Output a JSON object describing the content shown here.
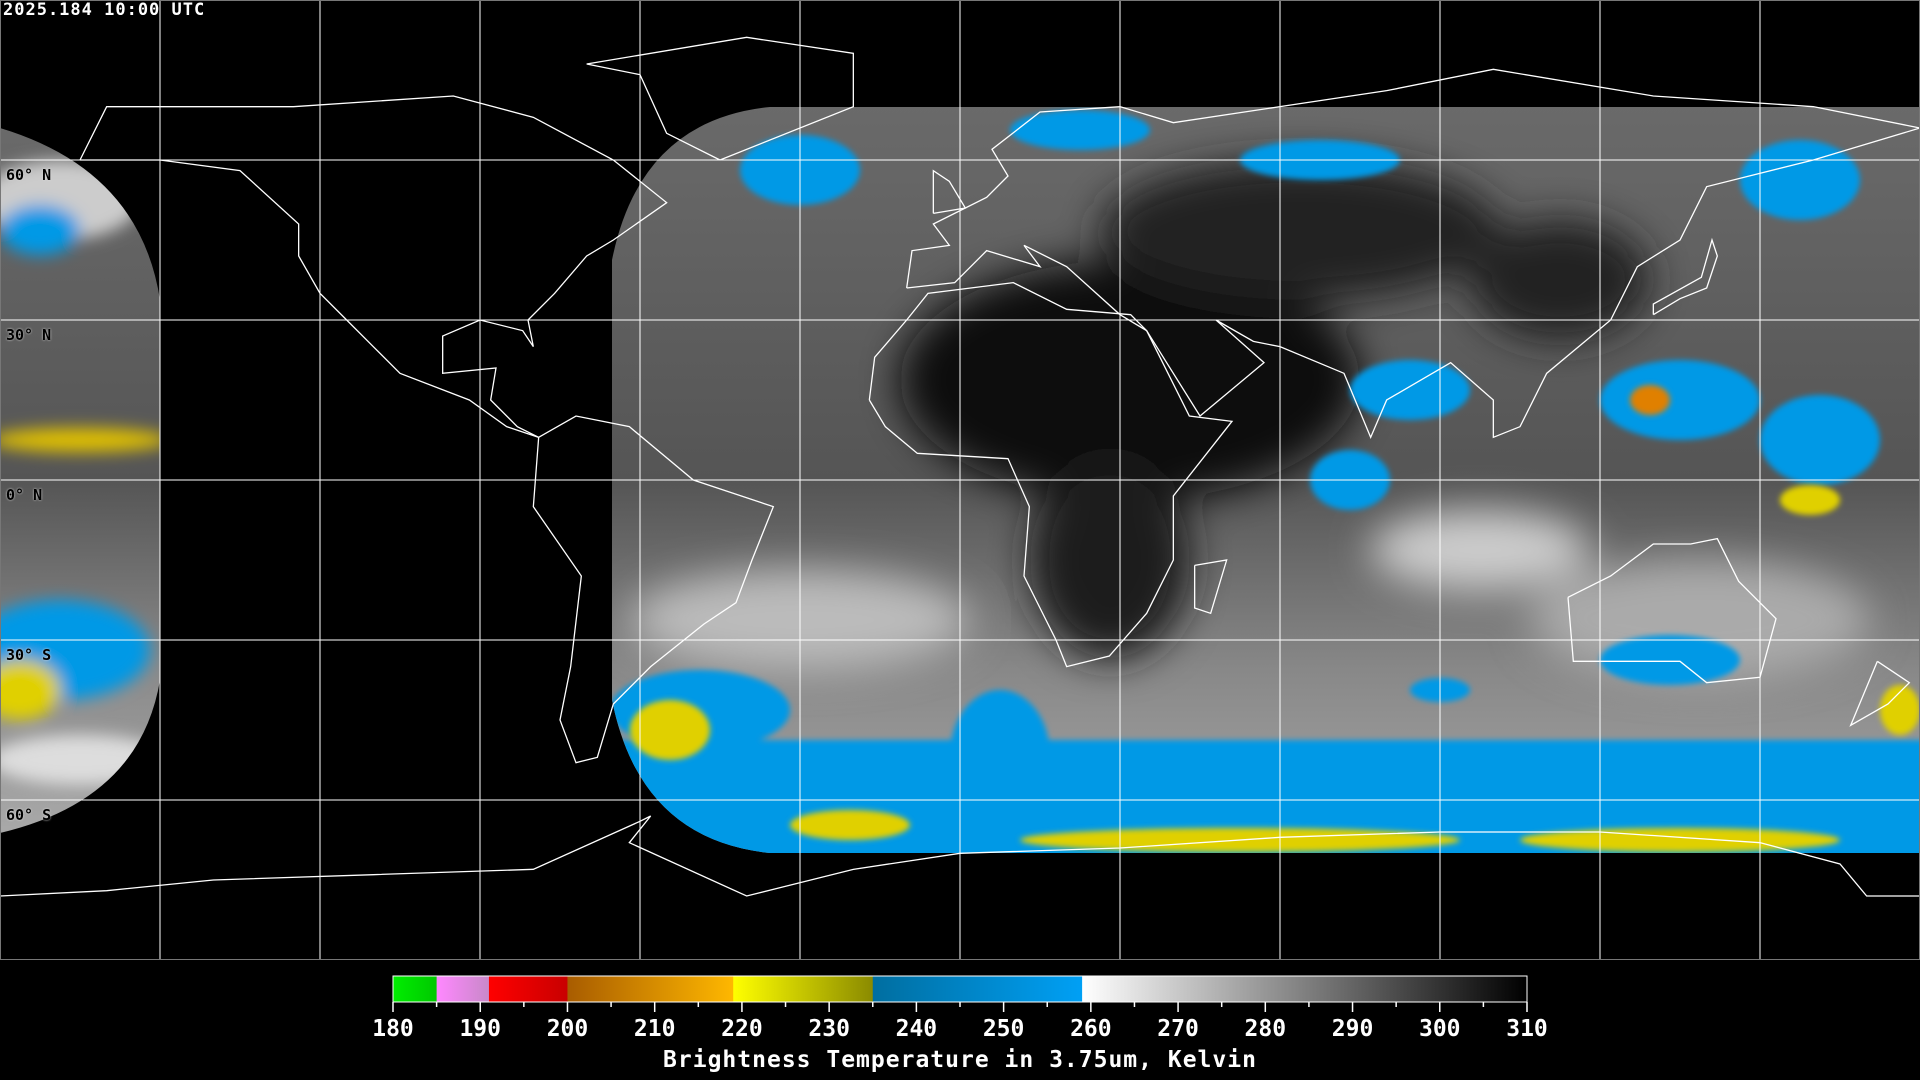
{
  "timestamp": "2025.184 10:00 UTC",
  "lat_labels": [
    "60° N",
    "30° N",
    "0° N",
    "30° S",
    "60° S"
  ],
  "lat_values": [
    60,
    30,
    0,
    -30,
    -60
  ],
  "grid": {
    "lon_step_deg": 30,
    "lat_step_deg": 30,
    "projection": "equirectangular",
    "line_color": "#ffffff"
  },
  "colorbar": {
    "title": "Brightness Temperature in 3.75um, Kelvin",
    "min": 180,
    "max": 310,
    "tick_labels": [
      "180",
      "190",
      "200",
      "210",
      "220",
      "230",
      "240",
      "250",
      "260",
      "270",
      "280",
      "290",
      "300",
      "310"
    ],
    "segments": [
      {
        "from": 180,
        "to": 185,
        "colors": [
          "#00ee00",
          "#00c800"
        ]
      },
      {
        "from": 185,
        "to": 191,
        "colors": [
          "#ff88ff",
          "#c888c8"
        ]
      },
      {
        "from": 191,
        "to": 200,
        "colors": [
          "#ff0000",
          "#c80000"
        ]
      },
      {
        "from": 200,
        "to": 219,
        "colors": [
          "#a85c00",
          "#ffb800"
        ]
      },
      {
        "from": 219,
        "to": 235,
        "colors": [
          "#ffff00",
          "#8a8a00"
        ]
      },
      {
        "from": 235,
        "to": 259,
        "colors": [
          "#006ea0",
          "#00a0f5"
        ]
      },
      {
        "from": 259,
        "to": 310,
        "colors": [
          "#ffffff",
          "#000000"
        ]
      }
    ]
  },
  "colors": {
    "cold_cloud_blue": "#0099e6",
    "very_cold_yellow": "#d8d000",
    "background": "#000000"
  }
}
